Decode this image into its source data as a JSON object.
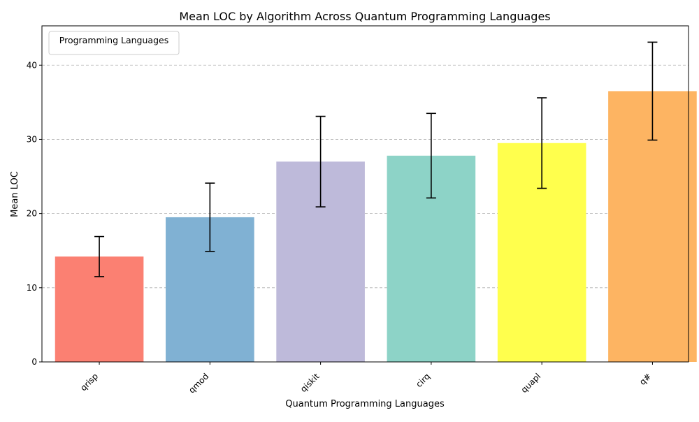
{
  "chart_data": {
    "type": "bar",
    "title": "Mean LOC by Algorithm Across Quantum Programming Languages",
    "xlabel": "Quantum Programming Languages",
    "ylabel": "Mean LOC",
    "categories": [
      "qrisp",
      "qmod",
      "qiskit",
      "cirq",
      "quapl",
      "q#"
    ],
    "values": [
      14.2,
      19.5,
      27.0,
      27.8,
      29.5,
      36.5
    ],
    "error": [
      2.7,
      4.6,
      6.1,
      5.7,
      6.1,
      6.6
    ],
    "colors": [
      "#fb8072",
      "#80b1d3",
      "#bebada",
      "#8dd3c7",
      "#ffff4d",
      "#fdb462"
    ],
    "ylim": [
      0,
      45.3
    ],
    "yticks": [
      0,
      10,
      20,
      30,
      40
    ],
    "grid": "y-dashed",
    "legend_title": "Programming Languages",
    "legend_placement": "top-left"
  }
}
